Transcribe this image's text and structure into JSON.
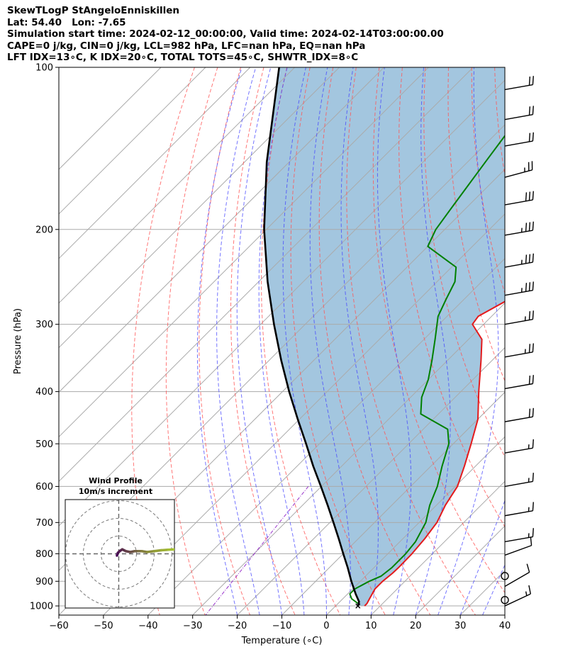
{
  "header": {
    "line1": "SkewTLogP StAngeloEnniskillen",
    "line2": "Lat: 54.40   Lon: -7.65",
    "line3": "Simulation start time: 2024-02-12_00:00:00, Valid time: 2024-02-14T03:00:00.00",
    "line4": "CAPE=0 j/kg, CIN=0 j/kg, LCL=982 hPa, LFC=nan hPa, EQ=nan hPa",
    "line5": "LFT IDX=13∘C, K IDX=20∘C, TOTAL TOTS=45∘C, SHWTR_IDX=8∘C"
  },
  "colors": {
    "temperature": "#e41a1c",
    "dewpoint": "#008000",
    "parcel": "#000000",
    "fill": "#a3c6df",
    "dry_adiabat": "#ff5555",
    "moist_adiabat": "#4444ff",
    "mixing_ratio": "#9933cc",
    "isotherm": "#aaaaaa"
  },
  "chart_data": {
    "type": "line",
    "title": "",
    "xlabel": "Temperature (∘C)",
    "ylabel": "Pressure (hPa)",
    "xlim": [
      -60,
      40
    ],
    "ylim": [
      1040,
      100
    ],
    "yscale": "log",
    "grid": true,
    "x_ticks": [
      "−60",
      "−50",
      "−40",
      "−30",
      "−20",
      "−10",
      "0",
      "10",
      "20",
      "30",
      "40"
    ],
    "y_ticks": [
      "100",
      "200",
      "300",
      "400",
      "500",
      "600",
      "700",
      "800",
      "900",
      "1000"
    ],
    "series": [
      {
        "key": "temperature",
        "points": [
          [
            1000,
            6.5
          ],
          [
            990,
            6.5
          ],
          [
            970,
            6.0
          ],
          [
            950,
            5.5
          ],
          [
            930,
            5.0
          ],
          [
            900,
            5.0
          ],
          [
            870,
            5.4
          ],
          [
            850,
            5.5
          ],
          [
            800,
            5.4
          ],
          [
            750,
            4.9
          ],
          [
            700,
            4.0
          ],
          [
            650,
            2.0
          ],
          [
            600,
            0.5
          ],
          [
            550,
            -2.5
          ],
          [
            500,
            -6.0
          ],
          [
            450,
            -10.0
          ],
          [
            400,
            -16.0
          ],
          [
            350,
            -22.5
          ],
          [
            320,
            -27.0
          ],
          [
            300,
            -32.5
          ],
          [
            290,
            -33.0
          ],
          [
            270,
            -30.0
          ],
          [
            250,
            -29.5
          ],
          [
            230,
            -30.0
          ],
          [
            210,
            -31.0
          ],
          [
            190,
            -33.0
          ],
          [
            170,
            -38.0
          ],
          [
            150,
            -44.0
          ],
          [
            130,
            -50.5
          ],
          [
            115,
            -55.5
          ],
          [
            100,
            -61.0
          ]
        ]
      },
      {
        "key": "dewpoint",
        "points": [
          [
            990,
            4.5
          ],
          [
            970,
            2.0
          ],
          [
            950,
            0.5
          ],
          [
            930,
            0.5
          ],
          [
            900,
            2.0
          ],
          [
            880,
            3.5
          ],
          [
            850,
            4.0
          ],
          [
            800,
            4.0
          ],
          [
            760,
            3.5
          ],
          [
            700,
            1.5
          ],
          [
            650,
            -1.5
          ],
          [
            600,
            -4.0
          ],
          [
            550,
            -7.5
          ],
          [
            500,
            -11.0
          ],
          [
            470,
            -14.5
          ],
          [
            440,
            -24.0
          ],
          [
            410,
            -27.5
          ],
          [
            380,
            -30.0
          ],
          [
            350,
            -33.5
          ],
          [
            320,
            -37.5
          ],
          [
            290,
            -42.0
          ],
          [
            270,
            -44.0
          ],
          [
            250,
            -46.0
          ],
          [
            235,
            -49.0
          ],
          [
            215,
            -60.0
          ],
          [
            200,
            -62.0
          ],
          [
            180,
            -63.5
          ],
          [
            150,
            -66.0
          ],
          [
            120,
            -69.0
          ],
          [
            100,
            -73.0
          ]
        ]
      },
      {
        "key": "parcel",
        "points": [
          [
            1000,
            5.0
          ],
          [
            982,
            4.3
          ],
          [
            950,
            1.8
          ],
          [
            900,
            -2.0
          ],
          [
            850,
            -5.8
          ],
          [
            800,
            -10.0
          ],
          [
            750,
            -14.4
          ],
          [
            700,
            -19.2
          ],
          [
            650,
            -24.4
          ],
          [
            600,
            -30.1
          ],
          [
            550,
            -36.4
          ],
          [
            500,
            -43.0
          ],
          [
            450,
            -50.4
          ],
          [
            400,
            -58.5
          ],
          [
            350,
            -67.3
          ],
          [
            300,
            -77.0
          ],
          [
            250,
            -88.0
          ],
          [
            200,
            -100.5
          ],
          [
            150,
            -115.0
          ],
          [
            100,
            -133.5
          ]
        ]
      }
    ],
    "wind_barbs": [
      {
        "p": 110,
        "dir": 260,
        "spd_kt": 20
      },
      {
        "p": 125,
        "dir": 260,
        "spd_kt": 20
      },
      {
        "p": 140,
        "dir": 260,
        "spd_kt": 20
      },
      {
        "p": 160,
        "dir": 255,
        "spd_kt": 25
      },
      {
        "p": 180,
        "dir": 260,
        "spd_kt": 30
      },
      {
        "p": 205,
        "dir": 260,
        "spd_kt": 35
      },
      {
        "p": 235,
        "dir": 260,
        "spd_kt": 35
      },
      {
        "p": 265,
        "dir": 260,
        "spd_kt": 35
      },
      {
        "p": 300,
        "dir": 260,
        "spd_kt": 25
      },
      {
        "p": 345,
        "dir": 260,
        "spd_kt": 25
      },
      {
        "p": 395,
        "dir": 260,
        "spd_kt": 20
      },
      {
        "p": 455,
        "dir": 260,
        "spd_kt": 20
      },
      {
        "p": 520,
        "dir": 260,
        "spd_kt": 15
      },
      {
        "p": 600,
        "dir": 260,
        "spd_kt": 15
      },
      {
        "p": 680,
        "dir": 260,
        "spd_kt": 15
      },
      {
        "p": 760,
        "dir": 260,
        "spd_kt": 15
      },
      {
        "p": 805,
        "dir": 250,
        "spd_kt": 10
      },
      {
        "p": 880,
        "dir": 0,
        "spd_kt": 0
      },
      {
        "p": 920,
        "dir": 240,
        "spd_kt": 10
      },
      {
        "p": 975,
        "dir": 0,
        "spd_kt": 0
      },
      {
        "p": 1000,
        "dir": 245,
        "spd_kt": 15
      }
    ],
    "inset": {
      "title": "Wind Profile",
      "subtitle": "10m/s increment",
      "rings_ms": [
        10,
        20,
        30
      ],
      "hodograph_uv": [
        [
          -1.0,
          -1.0
        ],
        [
          -0.5,
          0.5
        ],
        [
          0.5,
          1.5
        ],
        [
          2.0,
          2.5
        ],
        [
          4.0,
          1.5
        ],
        [
          6.5,
          1.0
        ],
        [
          9.0,
          1.5
        ],
        [
          11.0,
          1.5
        ],
        [
          13.0,
          1.5
        ],
        [
          16.0,
          1.0
        ],
        [
          20.0,
          1.5
        ],
        [
          24.0,
          2.0
        ],
        [
          28.0,
          2.3
        ],
        [
          31.5,
          2.5
        ],
        [
          35.0,
          2.0
        ],
        [
          37.0,
          1.6
        ]
      ]
    }
  }
}
